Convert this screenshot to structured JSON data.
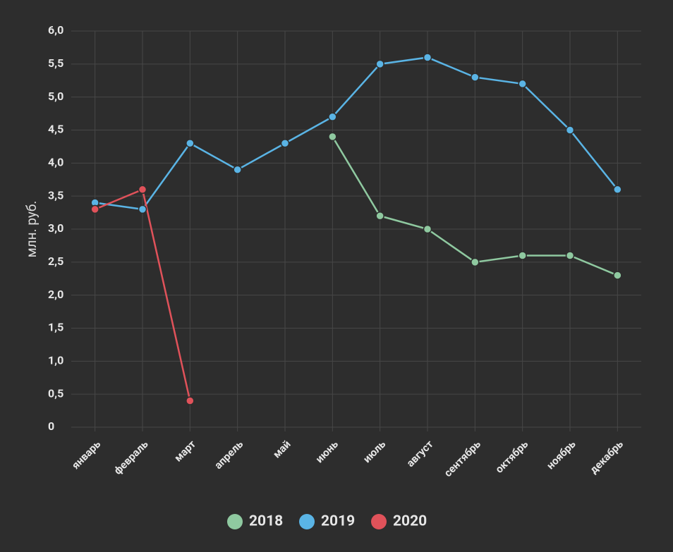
{
  "chart_data": {
    "type": "line",
    "y_label": "млн. руб.",
    "categories": [
      "январь",
      "февраль",
      "март",
      "апрель",
      "май",
      "июнь",
      "июль",
      "август",
      "сентябрь",
      "октябрь",
      "ноябрь",
      "декабрь"
    ],
    "series": [
      {
        "name": "2018",
        "color": "#8fc9a0",
        "values": [
          null,
          null,
          null,
          null,
          null,
          4.4,
          3.2,
          3.0,
          2.5,
          2.6,
          2.6,
          2.3
        ]
      },
      {
        "name": "2019",
        "color": "#5ab4e5",
        "values": [
          3.4,
          3.3,
          4.3,
          3.9,
          4.3,
          4.7,
          5.5,
          5.6,
          5.3,
          5.2,
          4.5,
          3.6
        ]
      },
      {
        "name": "2020",
        "color": "#e0525a",
        "values": [
          3.3,
          3.6,
          0.4,
          null,
          null,
          null,
          null,
          null,
          null,
          null,
          null,
          null
        ]
      }
    ],
    "ylim": [
      0,
      6
    ],
    "yticks": [
      0,
      {
        "value": 0.5,
        "label": "0,5"
      },
      {
        "value": 1,
        "label": "1,0"
      },
      {
        "value": 1.5,
        "label": "1,5"
      },
      {
        "value": 2,
        "label": "2,0"
      },
      {
        "value": 2.5,
        "label": "2,5"
      },
      {
        "value": 3,
        "label": "3,0"
      },
      {
        "value": 3.5,
        "label": "3,5"
      },
      {
        "value": 4,
        "label": "4,0"
      },
      {
        "value": 4.5,
        "label": "4,5"
      },
      {
        "value": 5,
        "label": "5,0"
      },
      {
        "value": 5.5,
        "label": "5,5"
      },
      {
        "value": 6,
        "label": "6,0"
      }
    ],
    "grid": true,
    "legend": "bottom"
  }
}
